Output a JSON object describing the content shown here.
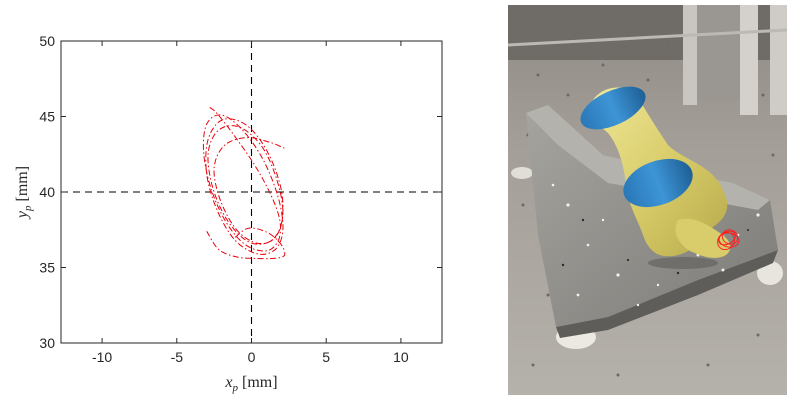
{
  "chart_data": {
    "type": "line",
    "xlabel_var": "x",
    "xlabel_sub": "p",
    "xlabel_unit": "[mm]",
    "ylabel_var": "y",
    "ylabel_sub": "p",
    "ylabel_unit": "[mm]",
    "xlim": [
      -12.75,
      12.75
    ],
    "ylim": [
      30,
      50
    ],
    "xticks": [
      -10,
      -5,
      0,
      5,
      10
    ],
    "yticks": [
      30,
      35,
      40,
      45,
      50
    ],
    "reference_lines": {
      "x": 0,
      "y": 40,
      "style": "dashed",
      "color": "#000000"
    },
    "grid": false,
    "series": [
      {
        "style": "dash-dot",
        "color": "#e8000b",
        "x": [
          -2.8,
          -2.3,
          -1.2,
          0.2,
          1.3,
          1.9,
          1.8,
          1.0,
          -0.4,
          -1.7,
          -2.7,
          -3.2,
          -3.0,
          -2.0,
          -0.6,
          0.8,
          1.8,
          2.1,
          1.6,
          0.4,
          -1.1,
          -2.3,
          -3.0,
          -2.9,
          -1.9,
          -0.3,
          1.1,
          2.0,
          2.0,
          1.2,
          -0.2,
          -1.6,
          -2.6,
          -2.9,
          -2.2,
          -0.8,
          0.7,
          1.7,
          2.1,
          1.6,
          0.4,
          -1.0,
          -2.1,
          -2.5,
          -1.8,
          -0.3,
          1.2,
          2.2
        ],
        "y": [
          45.6,
          45.2,
          43.8,
          41.8,
          39.8,
          38.1,
          36.8,
          36.1,
          36.5,
          38.0,
          40.2,
          42.6,
          44.5,
          45.1,
          44.1,
          42.1,
          39.6,
          37.5,
          36.2,
          35.9,
          36.8,
          38.8,
          41.2,
          43.5,
          44.8,
          44.4,
          42.6,
          40.1,
          37.9,
          36.7,
          36.7,
          38.1,
          40.3,
          42.6,
          44.1,
          44.3,
          43.0,
          40.8,
          38.6,
          37.0,
          36.6,
          37.5,
          39.5,
          41.6,
          43.1,
          43.6,
          43.3,
          42.9
        ]
      },
      {
        "style": "dash-dot",
        "color": "#e8000b",
        "x": [
          -3.0,
          -2.2,
          -1.0,
          0.3,
          1.5,
          2.2,
          2.0,
          1.1,
          -0.2,
          -1.2
        ],
        "y": [
          37.4,
          36.2,
          35.7,
          35.6,
          35.6,
          35.8,
          36.5,
          37.3,
          37.6,
          36.9
        ]
      }
    ]
  },
  "photo": {
    "subject": "yellow-blue-instrument-on-stone-cradle"
  }
}
